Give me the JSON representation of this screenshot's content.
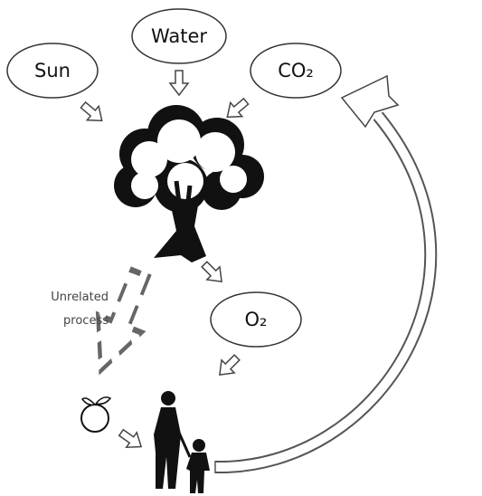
{
  "nodes": [
    {
      "label": "Sun"
    },
    {
      "label": "Water"
    },
    {
      "label": "CO₂"
    },
    {
      "label": "O₂"
    }
  ],
  "annotation": {
    "lines": [
      "Unrelated",
      "process"
    ]
  }
}
